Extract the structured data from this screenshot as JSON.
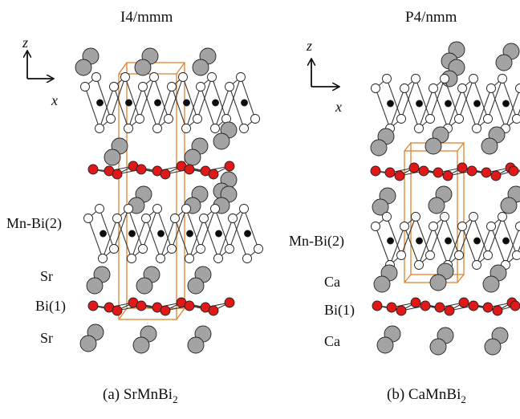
{
  "panels": [
    {
      "id": "a",
      "title": "I4/mmm",
      "caption_prefix": "(a) SrMnBi",
      "caption_sub": "2",
      "axis_vertical": "z",
      "axis_horizontal": "x",
      "side_labels": [
        "Mn-Bi(2)",
        "Sr",
        "Bi(1)",
        "Sr"
      ]
    },
    {
      "id": "b",
      "title": "P4/nmm",
      "caption_prefix": "(b) CaMnBi",
      "caption_sub": "2",
      "axis_vertical": "z",
      "axis_horizontal": "x",
      "side_labels": [
        "Mn-Bi(2)",
        "Ca",
        "Bi(1)",
        "Ca"
      ]
    }
  ],
  "colors": {
    "bi1_atom": "#e01818",
    "bi2_atom": "#ffffff",
    "mn_atom": "#0a0a0a",
    "alkaline_earth_atom": "#a3a3a3",
    "unit_cell": "#e0822e",
    "bond": "#333333"
  }
}
